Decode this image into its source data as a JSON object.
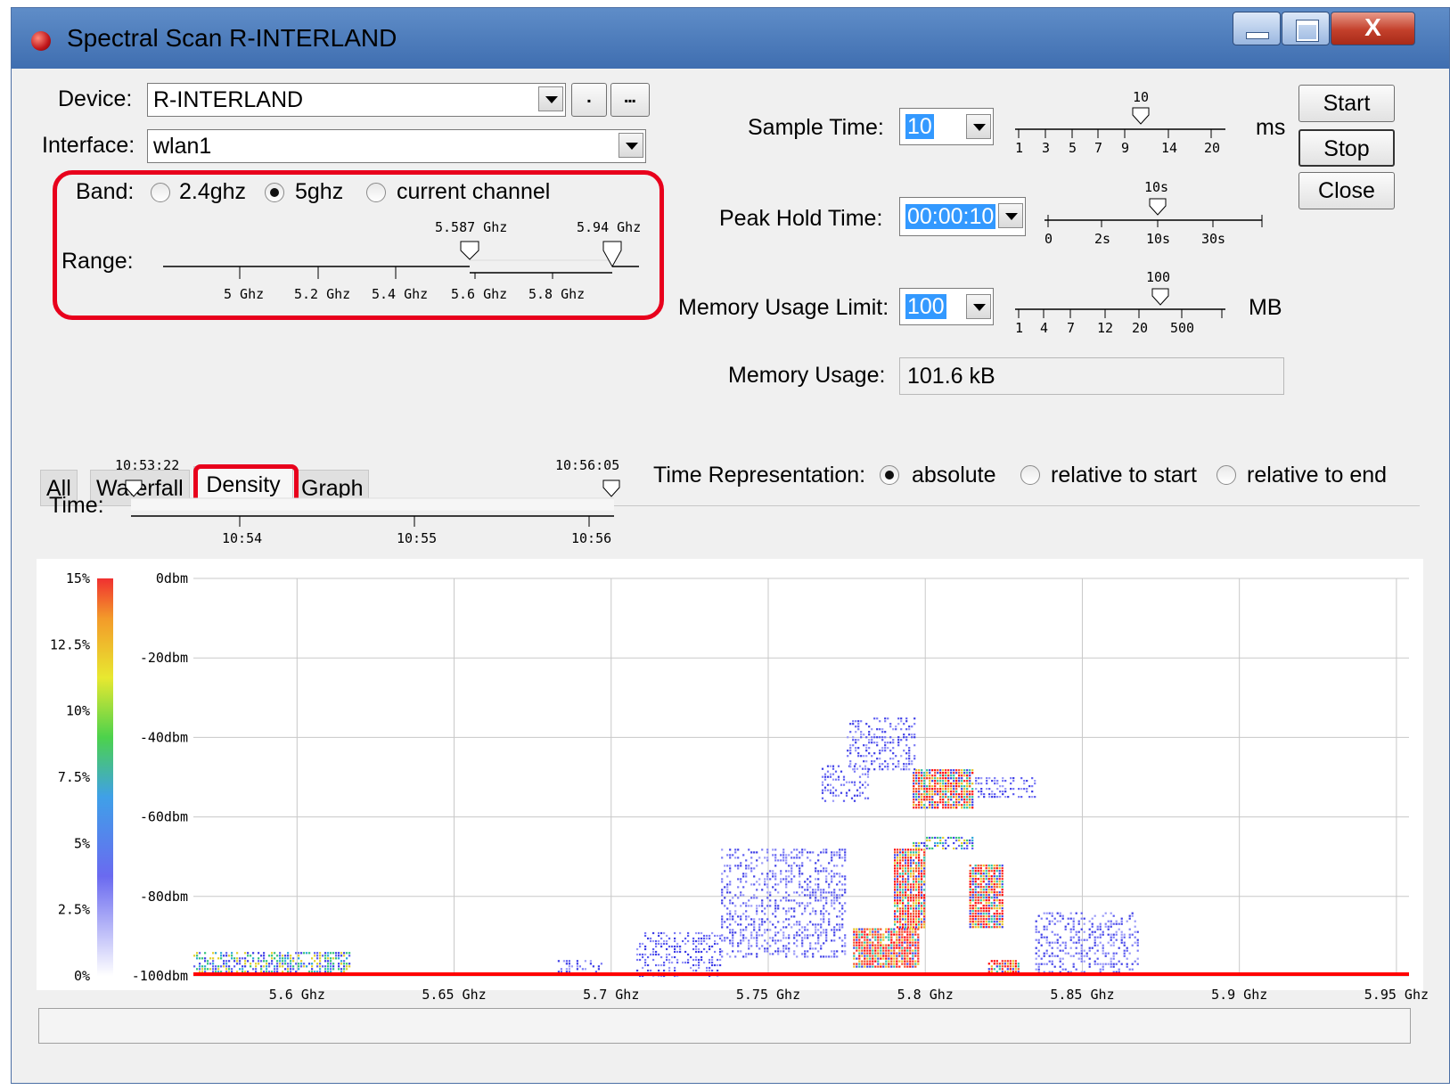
{
  "window": {
    "title": "Spectral Scan R-INTERLAND",
    "close_glyph": "X"
  },
  "device": {
    "label": "Device:",
    "value": "R-INTERLAND",
    "btn_small": "▪",
    "btn_more": "▪▪▪"
  },
  "interface": {
    "label": "Interface:",
    "value": "wlan1"
  },
  "band": {
    "label": "Band:",
    "options": [
      "2.4ghz",
      "5ghz",
      "current channel"
    ],
    "selected": "5ghz"
  },
  "range": {
    "label": "Range:",
    "low": "5.587 Ghz",
    "high": "5.94 Ghz",
    "ticks": [
      "5 Ghz",
      "5.2 Ghz",
      "5.4 Ghz",
      "5.6 Ghz",
      "5.8 Ghz"
    ]
  },
  "sample_time": {
    "label": "Sample Time:",
    "value": "10",
    "unit": "ms",
    "marker": "10",
    "ticks": [
      "1",
      "3",
      "5",
      "7",
      "9",
      "14",
      "20"
    ]
  },
  "peak_hold": {
    "label": "Peak Hold Time:",
    "value": "00:00:10",
    "marker": "10s",
    "ticks": [
      "0",
      "2s",
      "10s",
      "30s"
    ]
  },
  "memory_limit": {
    "label": "Memory Usage Limit:",
    "value": "100",
    "unit": "MB",
    "marker": "100",
    "ticks": [
      "1",
      "4",
      "7",
      "12",
      "20",
      "500"
    ]
  },
  "memory_usage": {
    "label": "Memory Usage:",
    "value": "101.6 kB"
  },
  "buttons": {
    "start": "Start",
    "stop": "Stop",
    "close": "Close"
  },
  "tabs": [
    "All",
    "Waterfall",
    "Density",
    "Graph"
  ],
  "active_tab": "Density",
  "time": {
    "label": "Time:",
    "start": "10:53:22",
    "end": "10:56:05",
    "ticks": [
      "10:54",
      "10:55",
      "10:56"
    ]
  },
  "time_representation": {
    "label": "Time Representation:",
    "options": [
      "absolute",
      "relative to start",
      "relative to end"
    ],
    "selected": "absolute"
  },
  "chart_data": {
    "type": "heatmap",
    "x_ticks": [
      "5.6 Ghz",
      "5.65 Ghz",
      "5.7 Ghz",
      "5.75 Ghz",
      "5.8 Ghz",
      "5.85 Ghz",
      "5.9 Ghz",
      "5.95 Ghz"
    ],
    "y_ticks": [
      "0dbm",
      "-20dbm",
      "-40dbm",
      "-60dbm",
      "-80dbm",
      "-100dbm"
    ],
    "xlim": [
      5.567,
      5.954
    ],
    "ylim": [
      -100,
      0
    ],
    "colorbar_ticks": [
      "15%",
      "12.5%",
      "10%",
      "7.5%",
      "5%",
      "2.5%",
      "0%"
    ],
    "colorbar_range": [
      0,
      15
    ],
    "baseline_dbm": -100,
    "clusters": [
      {
        "x": [
          5.567,
          5.617
        ],
        "y": [
          -100,
          -94
        ],
        "density": "medium"
      },
      {
        "x": [
          5.683,
          5.697
        ],
        "y": [
          -100,
          -96
        ],
        "density": "low"
      },
      {
        "x": [
          5.708,
          5.735
        ],
        "y": [
          -100,
          -89
        ],
        "density": "low"
      },
      {
        "x": [
          5.735,
          5.775
        ],
        "y": [
          -95,
          -68
        ],
        "density": "low"
      },
      {
        "x": [
          5.767,
          5.782
        ],
        "y": [
          -56,
          -47
        ],
        "density": "low"
      },
      {
        "x": [
          5.775,
          5.797
        ],
        "y": [
          -48,
          -35
        ],
        "density": "low"
      },
      {
        "x": [
          5.777,
          5.798
        ],
        "y": [
          -98,
          -88
        ],
        "density": "high"
      },
      {
        "x": [
          5.79,
          5.8
        ],
        "y": [
          -88,
          -68
        ],
        "density": "high"
      },
      {
        "x": [
          5.796,
          5.815
        ],
        "y": [
          -58,
          -48
        ],
        "density": "high"
      },
      {
        "x": [
          5.796,
          5.815
        ],
        "y": [
          -68,
          -65
        ],
        "density": "medium"
      },
      {
        "x": [
          5.814,
          5.825
        ],
        "y": [
          -88,
          -72
        ],
        "density": "high"
      },
      {
        "x": [
          5.82,
          5.83
        ],
        "y": [
          -100,
          -96
        ],
        "density": "high"
      },
      {
        "x": [
          5.815,
          5.835
        ],
        "y": [
          -55,
          -50
        ],
        "density": "low"
      },
      {
        "x": [
          5.835,
          5.868
        ],
        "y": [
          -100,
          -84
        ],
        "density": "low"
      }
    ]
  },
  "colors": {
    "accent": "#e8001c",
    "title_bar": "#4f7fc0",
    "selection": "#3399ff"
  }
}
